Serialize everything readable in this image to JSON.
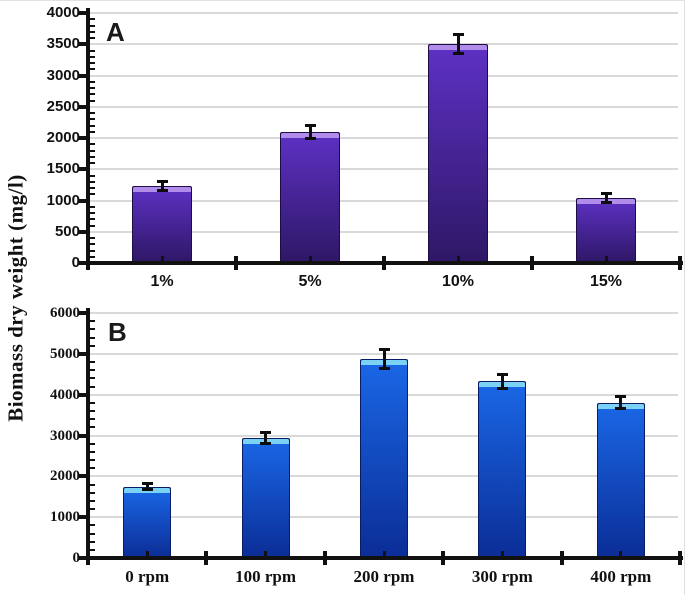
{
  "figure": {
    "ylabel": "Biomass dry weight (mg/l)",
    "background_color": "#ffffff",
    "gridline_color": "#d9d9d9",
    "axis_color": "#111111",
    "text_color": "#111111"
  },
  "chart_data": [
    {
      "type": "bar",
      "panel_label": "A",
      "title": "",
      "xlabel": "",
      "ylabel": "Biomass dry weight (mg/l)",
      "categories": [
        "1%",
        "5%",
        "10%",
        "15%"
      ],
      "values": [
        1230,
        2100,
        3500,
        1040
      ],
      "errors": [
        80,
        110,
        160,
        80
      ],
      "ylim": [
        0,
        4000
      ],
      "yticks": [
        0,
        500,
        1000,
        1500,
        2000,
        2500,
        3000,
        3500,
        4000
      ],
      "minor_tick_step": 100,
      "grid": true,
      "legend": null,
      "bar_color_top": "#5d31c4",
      "bar_color_bottom": "#2e1765",
      "bar_top_cap_color": "#b28cea",
      "bar_outline_color": "#1c0e45"
    },
    {
      "type": "bar",
      "panel_label": "B",
      "title": "",
      "xlabel": "",
      "ylabel": "Biomass dry weight (mg/l)",
      "categories": [
        "0 rpm",
        "100 rpm",
        "200 rpm",
        "300 rpm",
        "400 rpm"
      ],
      "values": [
        1750,
        2930,
        4870,
        4330,
        3800
      ],
      "errors": [
        80,
        150,
        250,
        180,
        160
      ],
      "ylim": [
        0,
        6000
      ],
      "yticks": [
        0,
        1000,
        2000,
        3000,
        4000,
        5000,
        6000
      ],
      "minor_tick_step": 200,
      "grid": true,
      "legend": null,
      "bar_color_top": "#1a67e6",
      "bar_color_bottom": "#0b2d96",
      "bar_top_cap_color": "#7cd2f4",
      "bar_outline_color": "#0a1c66"
    }
  ]
}
